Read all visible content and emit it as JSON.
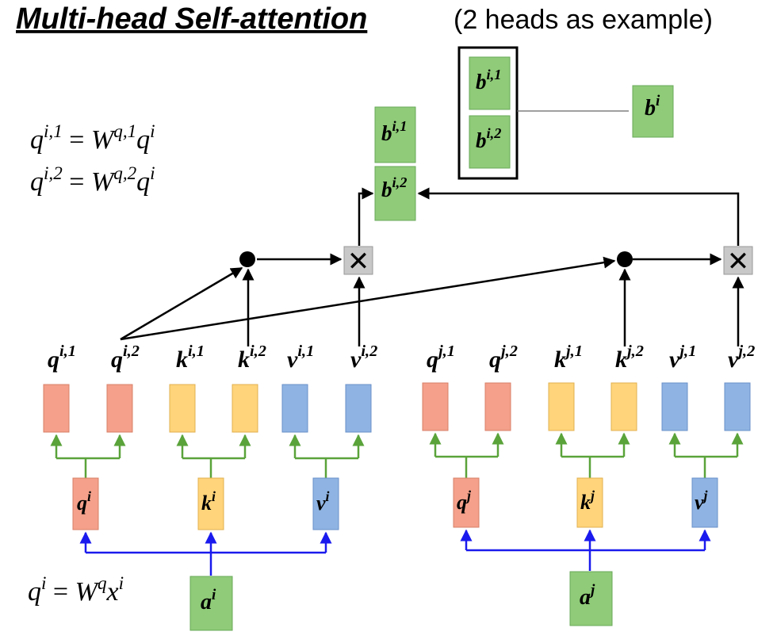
{
  "title": "Multi-head Self-attention",
  "subtitle": "(2 heads as example)",
  "colors": {
    "query": "#f4a08a",
    "key": "#ffd47a",
    "value": "#8fb4e3",
    "output": "#8fcb78",
    "green_line": "#5aa33a",
    "blue_line": "#1a1aee"
  },
  "formulas": {
    "head1": {
      "lhs": "q",
      "lhs_sup": "i,1",
      "eq": " = ",
      "w": "W",
      "w_sup": "q,1",
      "rhs": "q",
      "rhs_sup": "i"
    },
    "head2": {
      "lhs": "q",
      "lhs_sup": "i,2",
      "eq": " = ",
      "w": "W",
      "w_sup": "q,2",
      "rhs": "q",
      "rhs_sup": "i"
    },
    "query": {
      "lhs": "q",
      "lhs_sup": "i",
      "eq": " = ",
      "w": "W",
      "w_sup": "q",
      "rhs": "x",
      "rhs_sup": "i"
    }
  },
  "outputs": {
    "b_i1": {
      "base": "b",
      "sup": "i,1"
    },
    "b_i2": {
      "base": "b",
      "sup": "i,2"
    },
    "concat_b_i1": {
      "base": "b",
      "sup": "i,1"
    },
    "concat_b_i2": {
      "base": "b",
      "sup": "i,2"
    },
    "b_i": {
      "base": "b",
      "sup": "i"
    }
  },
  "operators": {
    "dot_product": "●",
    "multiply": "✕"
  },
  "vectors_i": {
    "q_head1": {
      "base": "q",
      "sup": "i,1"
    },
    "q_head2": {
      "base": "q",
      "sup": "i,2"
    },
    "k_head1": {
      "base": "k",
      "sup": "i,1"
    },
    "k_head2": {
      "base": "k",
      "sup": "i,2"
    },
    "v_head1": {
      "base": "v",
      "sup": "i,1"
    },
    "v_head2": {
      "base": "v",
      "sup": "i,2"
    },
    "q": {
      "base": "q",
      "sup": "i"
    },
    "k": {
      "base": "k",
      "sup": "i"
    },
    "v": {
      "base": "v",
      "sup": "i"
    },
    "a": {
      "base": "a",
      "sup": "i"
    }
  },
  "vectors_j": {
    "q_head1": {
      "base": "q",
      "sup": "j,1"
    },
    "q_head2": {
      "base": "q",
      "sup": "j,2"
    },
    "k_head1": {
      "base": "k",
      "sup": "j,1"
    },
    "k_head2": {
      "base": "k",
      "sup": "j,2"
    },
    "v_head1": {
      "base": "v",
      "sup": "j,1"
    },
    "v_head2": {
      "base": "v",
      "sup": "j,2"
    },
    "q": {
      "base": "q",
      "sup": "j"
    },
    "k": {
      "base": "k",
      "sup": "j"
    },
    "v": {
      "base": "v",
      "sup": "j"
    },
    "a": {
      "base": "a",
      "sup": "j"
    }
  }
}
